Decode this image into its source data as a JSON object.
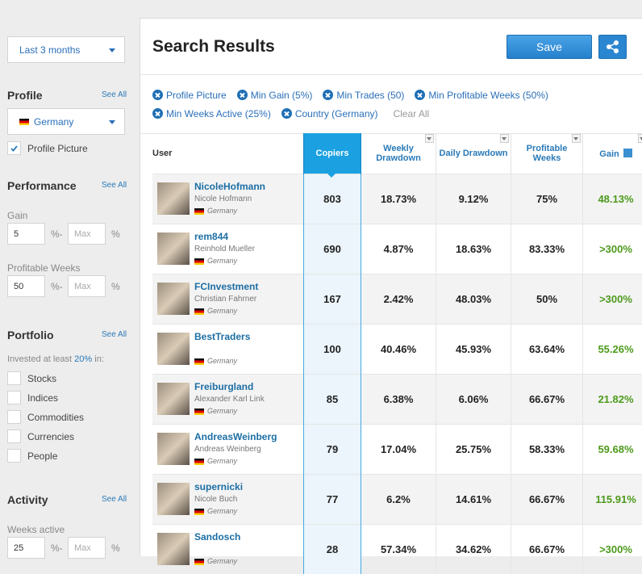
{
  "sidebar": {
    "period": "Last 3 months",
    "profile": {
      "title": "Profile",
      "see_all": "See All",
      "country": "Germany",
      "checkbox": "Profile Picture"
    },
    "performance": {
      "title": "Performance",
      "see_all": "See All",
      "gain": {
        "label": "Gain",
        "min": "5",
        "sep": "%-",
        "max": "Max",
        "unit": "%"
      },
      "profitable_weeks": {
        "label": "Profitable Weeks",
        "min": "50",
        "sep": "%-",
        "max": "Max",
        "unit": "%"
      }
    },
    "portfolio": {
      "title": "Portfolio",
      "see_all": "See All",
      "intro": {
        "before": "Invested at least ",
        "amount": "20%",
        "after": " in:"
      },
      "options": [
        "Stocks",
        "Indices",
        "Commodities",
        "Currencies",
        "People"
      ]
    },
    "activity": {
      "title": "Activity",
      "see_all": "See All",
      "weeks_active": {
        "label": "Weeks active",
        "min": "25",
        "sep": "%-",
        "max": "Max",
        "unit": "%"
      }
    }
  },
  "header": {
    "title": "Search Results",
    "save": "Save"
  },
  "filters": [
    "Profile Picture",
    "Min Gain (5%)",
    "Min Trades (50)",
    "Min Profitable Weeks (50%)",
    "Min Weeks Active (25%)",
    "Country (Germany)"
  ],
  "clear_all": "Clear All",
  "table": {
    "columns": [
      "User",
      "Copiers",
      "Weekly Drawdown",
      "Daily Drawdown",
      "Profitable Weeks",
      "Gain"
    ],
    "rows": [
      {
        "username": "NicoleHofmann",
        "real_name": "Nicole Hofmann",
        "country": "Germany",
        "cells": [
          "803",
          "18.73%",
          "9.12%",
          "75%",
          "48.13%"
        ]
      },
      {
        "username": "rem844",
        "real_name": "Reinhold Mueller",
        "country": "Germany",
        "cells": [
          "690",
          "4.87%",
          "18.63%",
          "83.33%",
          ">300%"
        ]
      },
      {
        "username": "FCInvestment",
        "real_name": "Christian Fahrner",
        "country": "Germany",
        "cells": [
          "167",
          "2.42%",
          "48.03%",
          "50%",
          ">300%"
        ]
      },
      {
        "username": "BestTraders",
        "country": "Germany",
        "cells": [
          "100",
          "40.46%",
          "45.93%",
          "63.64%",
          "55.26%"
        ]
      },
      {
        "username": "Freiburgland",
        "real_name": "Alexander Karl Link",
        "country": "Germany",
        "cells": [
          "85",
          "6.38%",
          "6.06%",
          "66.67%",
          "21.82%"
        ]
      },
      {
        "username": "AndreasWeinberg",
        "real_name": "Andreas Weinberg",
        "country": "Germany",
        "cells": [
          "79",
          "17.04%",
          "25.75%",
          "58.33%",
          "59.68%"
        ]
      },
      {
        "username": "supernicki",
        "real_name": "Nicole Buch",
        "country": "Germany",
        "cells": [
          "77",
          "6.2%",
          "14.61%",
          "66.67%",
          "115.91%"
        ]
      },
      {
        "username": "Sandosch",
        "country": "Germany",
        "cells": [
          "28",
          "57.34%",
          "34.62%",
          "66.67%",
          ">300%"
        ]
      }
    ]
  }
}
